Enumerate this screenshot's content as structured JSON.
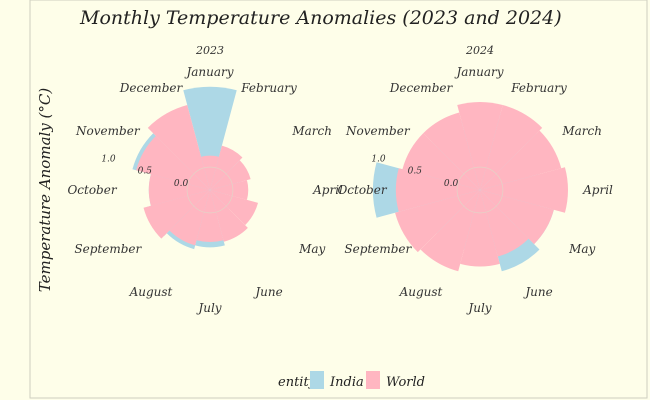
{
  "chart_data": {
    "type": "bar",
    "subtype": "polar-bar",
    "title": "Monthly Temperature Anomalies (2023 and 2024)",
    "ylabel": "Temperature Anomaly (°C)",
    "radial_ticks": [
      0.0,
      0.5,
      1.0
    ],
    "rlim": [
      -0.3,
      1.4
    ],
    "categories": [
      "January",
      "February",
      "March",
      "April",
      "May",
      "June",
      "July",
      "August",
      "September",
      "October",
      "November",
      "December"
    ],
    "legend": {
      "title": "entity",
      "position": "bottom-center"
    },
    "panels": [
      {
        "label": "2023",
        "series": [
          {
            "name": "India",
            "color": "#add8e6",
            "values": [
              1.05,
              0.25,
              0.12,
              0.05,
              -0.1,
              0.05,
              0.45,
              0.5,
              0.55,
              0.5,
              0.75,
              0.25
            ]
          },
          {
            "name": "World",
            "color": "#ffb6c1",
            "values": [
              0.15,
              0.3,
              0.25,
              0.2,
              0.35,
              0.4,
              0.38,
              0.45,
              0.6,
              0.5,
              0.7,
              0.85
            ]
          }
        ]
      },
      {
        "label": "2024",
        "series": [
          {
            "name": "India",
            "color": "#add8e6",
            "values": [
              0.65,
              0.75,
              0.38,
              0.5,
              0.7,
              0.8,
              0.5,
              0.5,
              0.5,
              1.1,
              0.6,
              0.5
            ]
          },
          {
            "name": "World",
            "color": "#ffb6c1",
            "values": [
              0.85,
              0.85,
              0.8,
              0.85,
              0.7,
              0.6,
              0.7,
              0.8,
              0.85,
              0.8,
              0.75,
              0.75
            ]
          }
        ]
      }
    ]
  }
}
